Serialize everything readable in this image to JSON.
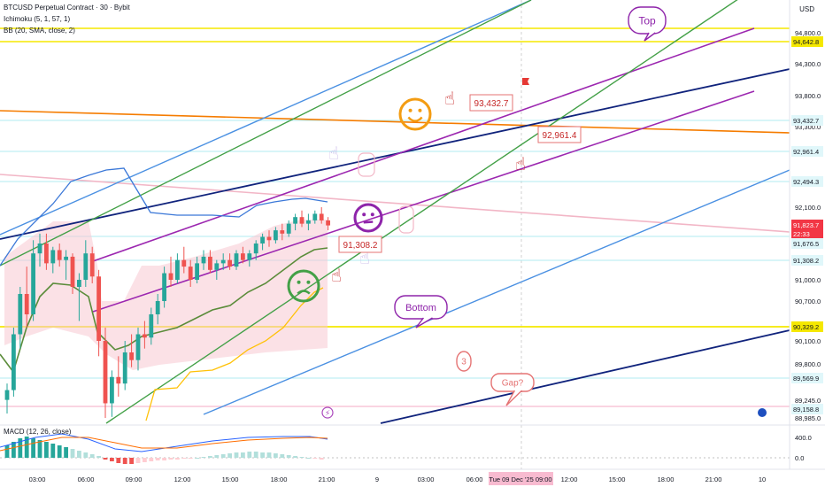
{
  "header": {
    "symbol_line": "BTCUSD Perpetual Contract · 30 · Bybit",
    "ichimoku": "Ichimoku (5, 1, 57, 1)",
    "bb": "BB (20, SMA, close, 2)",
    "macd": "MACD (12, 26, close)",
    "currency": "USD"
  },
  "colors": {
    "up": "#26a69a",
    "down": "#ef5350",
    "yellow": "#f5e800",
    "navy": "#10237c",
    "purple": "#9c27b0",
    "green": "#43a047",
    "blue": "#4a90e2",
    "orange": "#f57c00",
    "pink": "#f2b6c6"
  },
  "chart_data": {
    "type": "candlestick",
    "price_axis": {
      "ticks": [
        "94,800.0",
        "94,300.0",
        "93,800.0",
        "93,300.0",
        "92,100.0",
        "91,000.0",
        "90,700.0",
        "90,100.0",
        "89,800.0",
        "89,245.0",
        "88,985.0"
      ],
      "labels": [
        {
          "text": "94,642.8",
          "style": "yellow"
        },
        {
          "text": "93,432.7",
          "style": "plain"
        },
        {
          "text": "92,961.4",
          "style": "plain"
        },
        {
          "text": "92,494.3",
          "style": "plain"
        },
        {
          "text": "91,823.7",
          "style": "red",
          "sub": "22:33"
        },
        {
          "text": "91,676.5",
          "style": "plain"
        },
        {
          "text": "91,308.2",
          "style": "plain"
        },
        {
          "text": "90,329.2",
          "style": "yellow"
        },
        {
          "text": "89,569.9",
          "style": "plain"
        },
        {
          "text": "89,158.8",
          "style": "plain"
        }
      ]
    },
    "macd_axis": {
      "ticks": [
        "400.0",
        "0.0"
      ]
    },
    "time_axis": {
      "ticks": [
        "03:00",
        "06:00",
        "09:00",
        "12:00",
        "15:00",
        "18:00",
        "21:00",
        "9",
        "03:00",
        "06:00",
        "09:00",
        "12:00",
        "15:00",
        "18:00",
        "21:00",
        "10"
      ],
      "highlight": "Tue 09 Dec '25   09:00"
    },
    "annotations": {
      "price_tags": [
        "93,432.7",
        "92,961.4",
        "91,308.2"
      ],
      "bubbles": [
        "Top",
        "Bottom",
        "Gap?",
        "3"
      ]
    },
    "candles": [
      {
        "o": 89250,
        "h": 89500,
        "l": 89050,
        "c": 89400
      },
      {
        "o": 89400,
        "h": 90300,
        "l": 89300,
        "c": 90200
      },
      {
        "o": 90200,
        "h": 90900,
        "l": 90000,
        "c": 90800
      },
      {
        "o": 90800,
        "h": 91200,
        "l": 90300,
        "c": 90500
      },
      {
        "o": 90500,
        "h": 91600,
        "l": 90400,
        "c": 91400
      },
      {
        "o": 91400,
        "h": 91700,
        "l": 91200,
        "c": 91550
      },
      {
        "o": 91550,
        "h": 91700,
        "l": 91150,
        "c": 91250
      },
      {
        "o": 91250,
        "h": 91500,
        "l": 91100,
        "c": 91450
      },
      {
        "o": 91450,
        "h": 91550,
        "l": 91200,
        "c": 91300
      },
      {
        "o": 91300,
        "h": 91450,
        "l": 91000,
        "c": 91350
      },
      {
        "o": 91350,
        "h": 91400,
        "l": 90800,
        "c": 90900
      },
      {
        "o": 90900,
        "h": 91100,
        "l": 90400,
        "c": 91000
      },
      {
        "o": 91000,
        "h": 91600,
        "l": 90900,
        "c": 91400
      },
      {
        "o": 91400,
        "h": 91500,
        "l": 90950,
        "c": 91050
      },
      {
        "o": 91050,
        "h": 91150,
        "l": 89900,
        "c": 90100
      },
      {
        "o": 90100,
        "h": 90300,
        "l": 88950,
        "c": 89200
      },
      {
        "o": 89200,
        "h": 89700,
        "l": 89000,
        "c": 89600
      },
      {
        "o": 89600,
        "h": 89900,
        "l": 89300,
        "c": 89500
      },
      {
        "o": 89500,
        "h": 90100,
        "l": 89400,
        "c": 89950
      },
      {
        "o": 89950,
        "h": 90200,
        "l": 89750,
        "c": 89850
      },
      {
        "o": 89850,
        "h": 90300,
        "l": 89700,
        "c": 90200
      },
      {
        "o": 90200,
        "h": 90400,
        "l": 90000,
        "c": 90150
      },
      {
        "o": 90150,
        "h": 90600,
        "l": 90050,
        "c": 90500
      },
      {
        "o": 90500,
        "h": 90800,
        "l": 90350,
        "c": 90700
      },
      {
        "o": 90700,
        "h": 91200,
        "l": 90600,
        "c": 91100
      },
      {
        "o": 91100,
        "h": 91350,
        "l": 90900,
        "c": 91000
      },
      {
        "o": 91000,
        "h": 91400,
        "l": 90950,
        "c": 91300
      },
      {
        "o": 91300,
        "h": 91500,
        "l": 91100,
        "c": 91200
      },
      {
        "o": 91200,
        "h": 91300,
        "l": 90900,
        "c": 91000
      },
      {
        "o": 91000,
        "h": 91350,
        "l": 90950,
        "c": 91250
      },
      {
        "o": 91250,
        "h": 91450,
        "l": 91150,
        "c": 91350
      },
      {
        "o": 91350,
        "h": 91450,
        "l": 91100,
        "c": 91150
      },
      {
        "o": 91150,
        "h": 91300,
        "l": 91000,
        "c": 91250
      },
      {
        "o": 91250,
        "h": 91400,
        "l": 91150,
        "c": 91300
      },
      {
        "o": 91300,
        "h": 91400,
        "l": 91150,
        "c": 91200
      },
      {
        "o": 91200,
        "h": 91450,
        "l": 91150,
        "c": 91400
      },
      {
        "o": 91400,
        "h": 91500,
        "l": 91250,
        "c": 91300
      },
      {
        "o": 91300,
        "h": 91450,
        "l": 91200,
        "c": 91400
      },
      {
        "o": 91400,
        "h": 91600,
        "l": 91300,
        "c": 91550
      },
      {
        "o": 91550,
        "h": 91700,
        "l": 91450,
        "c": 91650
      },
      {
        "o": 91650,
        "h": 91750,
        "l": 91500,
        "c": 91600
      },
      {
        "o": 91600,
        "h": 91800,
        "l": 91550,
        "c": 91750
      },
      {
        "o": 91750,
        "h": 91850,
        "l": 91600,
        "c": 91700
      },
      {
        "o": 91700,
        "h": 91900,
        "l": 91650,
        "c": 91850
      },
      {
        "o": 91850,
        "h": 92000,
        "l": 91750,
        "c": 91950
      },
      {
        "o": 91950,
        "h": 92050,
        "l": 91800,
        "c": 91850
      },
      {
        "o": 91850,
        "h": 92000,
        "l": 91750,
        "c": 91900
      },
      {
        "o": 91900,
        "h": 92050,
        "l": 91850,
        "c": 92000
      },
      {
        "o": 92000,
        "h": 92100,
        "l": 91850,
        "c": 91900
      },
      {
        "o": 91900,
        "h": 91950,
        "l": 91750,
        "c": 91824
      }
    ]
  }
}
